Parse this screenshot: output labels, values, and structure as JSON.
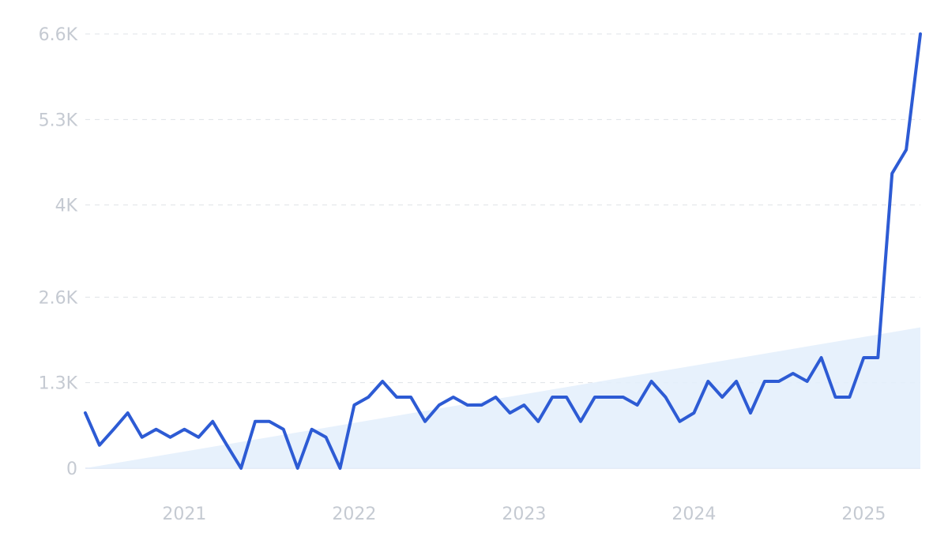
{
  "chart_data": {
    "type": "line",
    "title": "",
    "xlabel": "",
    "ylabel": "",
    "ylim": [
      0,
      6600
    ],
    "y_ticks": [
      {
        "value": 0,
        "label": "0"
      },
      {
        "value": 1300,
        "label": "1.3K"
      },
      {
        "value": 2600,
        "label": "2.6K"
      },
      {
        "value": 4000,
        "label": "4K"
      },
      {
        "value": 5300,
        "label": "5.3K"
      },
      {
        "value": 6600,
        "label": "6.6K"
      }
    ],
    "x_range": [
      "2020-06",
      "2025-05"
    ],
    "x_ticks": [
      {
        "month": "2021-01",
        "label": "2021"
      },
      {
        "month": "2022-01",
        "label": "2022"
      },
      {
        "month": "2023-01",
        "label": "2023"
      },
      {
        "month": "2024-01",
        "label": "2024"
      },
      {
        "month": "2025-01",
        "label": "2025"
      }
    ],
    "grid": true,
    "colors": {
      "line": "#2d5bd4",
      "trend_fill": "#e3eefc",
      "grid": "#dfe3e8",
      "tick": "#c5cad2"
    },
    "series": [
      {
        "style": "line",
        "x": [
          "2020-06",
          "2020-07",
          "2020-08",
          "2020-09",
          "2020-10",
          "2020-11",
          "2020-12",
          "2021-01",
          "2021-02",
          "2021-03",
          "2021-04",
          "2021-05",
          "2021-06",
          "2021-07",
          "2021-08",
          "2021-09",
          "2021-10",
          "2021-11",
          "2021-12",
          "2022-01",
          "2022-02",
          "2022-03",
          "2022-04",
          "2022-05",
          "2022-06",
          "2022-07",
          "2022-08",
          "2022-09",
          "2022-10",
          "2022-11",
          "2022-12",
          "2023-01",
          "2023-02",
          "2023-03",
          "2023-04",
          "2023-05",
          "2023-06",
          "2023-07",
          "2023-08",
          "2023-09",
          "2023-10",
          "2023-11",
          "2023-12",
          "2024-01",
          "2024-02",
          "2024-03",
          "2024-04",
          "2024-05",
          "2024-06",
          "2024-07",
          "2024-08",
          "2024-09",
          "2024-10",
          "2024-11",
          "2024-12",
          "2025-01",
          "2025-02",
          "2025-03",
          "2025-04",
          "2025-05"
        ],
        "values": [
          840,
          350,
          590,
          840,
          470,
          590,
          470,
          590,
          470,
          710,
          350,
          0,
          710,
          710,
          590,
          0,
          590,
          470,
          0,
          960,
          1080,
          1320,
          1080,
          1080,
          710,
          960,
          1080,
          960,
          960,
          1080,
          840,
          960,
          710,
          1080,
          1080,
          710,
          1080,
          1080,
          1080,
          960,
          1320,
          1080,
          710,
          840,
          1320,
          1080,
          1320,
          840,
          1320,
          1320,
          1440,
          1320,
          1680,
          1080,
          1080,
          1680,
          1680,
          4480,
          4840,
          6600
        ]
      },
      {
        "style": "trend-area",
        "x": [
          "2020-06",
          "2025-05"
        ],
        "values": [
          0,
          2140
        ]
      }
    ]
  }
}
